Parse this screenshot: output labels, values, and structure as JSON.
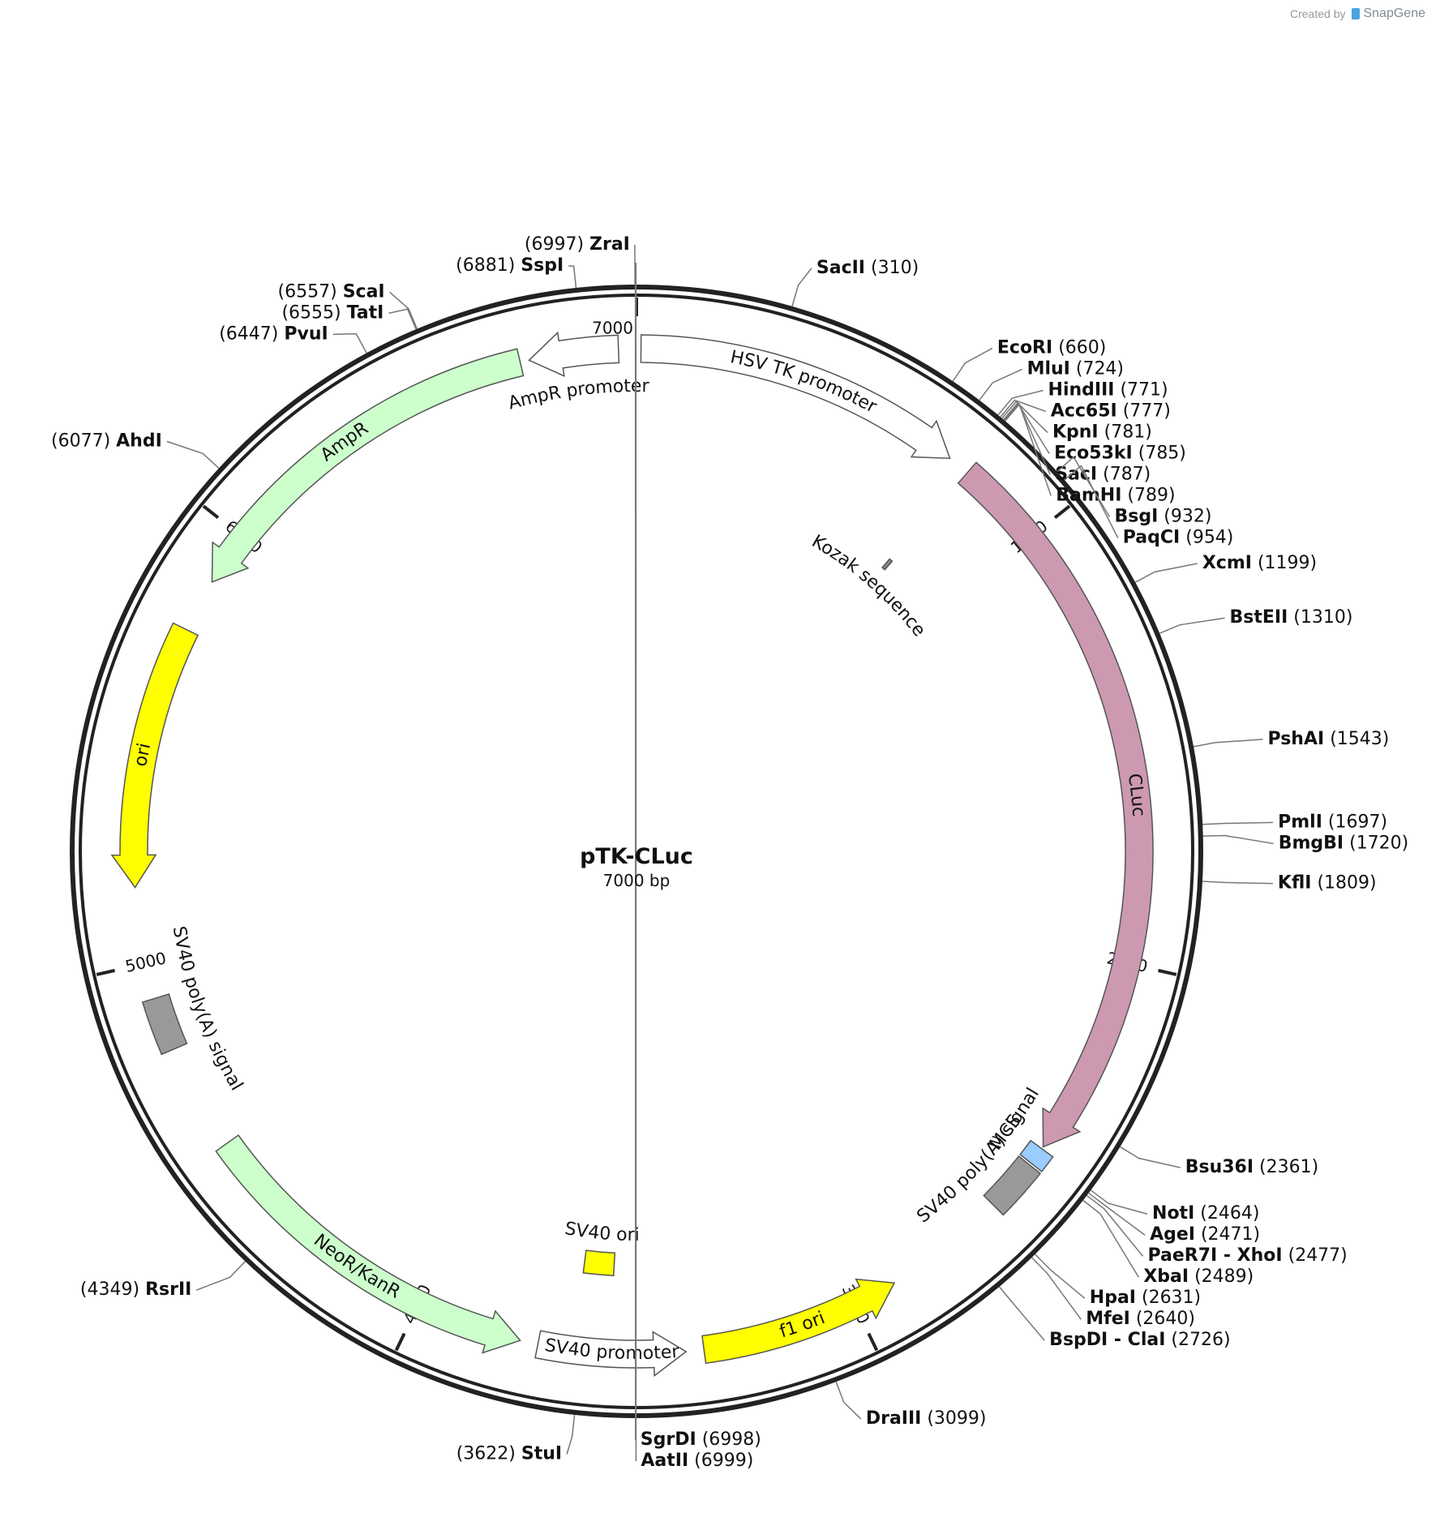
{
  "credit": {
    "prefix": "Created by",
    "brand": "SnapGene"
  },
  "plasmid": {
    "name": "pTK-CLuc",
    "length_label": "7000 bp",
    "total_bp": 7000
  },
  "ticks": [
    {
      "bp": 1000,
      "label": "1000"
    },
    {
      "bp": 2000,
      "label": "2000"
    },
    {
      "bp": 3000,
      "label": "3000"
    },
    {
      "bp": 4000,
      "label": "4000"
    },
    {
      "bp": 5000,
      "label": "5000"
    },
    {
      "bp": 6000,
      "label": "6000"
    },
    {
      "bp": 7000,
      "label": "7000"
    }
  ],
  "features": [
    {
      "name": "HSV TK promoter",
      "type": "arrow",
      "start": 10,
      "end": 750,
      "color": "#ffffff",
      "track": 0
    },
    {
      "name": "CLuc",
      "type": "arrow",
      "start": 800,
      "end": 2450,
      "color": "#cc99b1",
      "track": 0
    },
    {
      "name": "Kozak sequence",
      "type": "box",
      "start": 795,
      "end": 805,
      "color": "#888888",
      "track": 2
    },
    {
      "name": "MCS",
      "type": "box",
      "start": 2455,
      "end": 2495,
      "color": "#99ccff",
      "track": 0
    },
    {
      "name": "SV40 poly(A) signal",
      "type": "box",
      "start": 2500,
      "end": 2620,
      "color": "#999999",
      "track": 0
    },
    {
      "name": "f1 ori",
      "type": "arrow_rev",
      "start": 2900,
      "end": 3350,
      "color": "#ffff00",
      "track": 0
    },
    {
      "name": "SV40 promoter",
      "type": "arrow_rev",
      "start": 3390,
      "end": 3720,
      "color": "#ffffff",
      "track": 0
    },
    {
      "name": "SV40 ori",
      "type": "box",
      "start": 3560,
      "end": 3640,
      "color": "#ffff00",
      "track": 1
    },
    {
      "name": "NeoR/KanR",
      "type": "arrow_rev",
      "start": 3760,
      "end": 4560,
      "color": "#ccffcc",
      "track": 0
    },
    {
      "name": "SV40 poly(A) signal",
      "type": "box",
      "start": 4800,
      "end": 4920,
      "color": "#999999",
      "track": 0
    },
    {
      "name": "ori",
      "type": "arrow_rev",
      "start": 5170,
      "end": 5760,
      "color": "#ffff00",
      "track": 0
    },
    {
      "name": "AmpR",
      "type": "arrow_rev",
      "start": 5880,
      "end": 6740,
      "color": "#ccffcc",
      "track": 0
    },
    {
      "name": "AmpR promoter",
      "type": "arrow_rev",
      "start": 6760,
      "end": 6960,
      "color": "#ffffff",
      "track": 0
    }
  ],
  "sites": [
    {
      "name": "ZraI",
      "pos": "(6997)",
      "bp": 6997,
      "side": "L"
    },
    {
      "name": "SspI",
      "pos": "(6881)",
      "bp": 6881,
      "side": "L"
    },
    {
      "name": "SgrDI",
      "pos": "(6998)",
      "bp": 6998,
      "side": "R"
    },
    {
      "name": "AatII",
      "pos": "(6999)",
      "bp": 6999,
      "side": "R"
    },
    {
      "name": "SacII",
      "pos": "(310)",
      "bp": 310,
      "side": "R"
    },
    {
      "name": "EcoRI",
      "pos": "(660)",
      "bp": 660,
      "side": "R"
    },
    {
      "name": "MluI",
      "pos": "(724)",
      "bp": 724,
      "side": "R"
    },
    {
      "name": "HindIII",
      "pos": "(771)",
      "bp": 771,
      "side": "R"
    },
    {
      "name": "Acc65I",
      "pos": "(777)",
      "bp": 777,
      "side": "R"
    },
    {
      "name": "KpnI",
      "pos": "(781)",
      "bp": 781,
      "side": "R"
    },
    {
      "name": "Eco53kI",
      "pos": "(785)",
      "bp": 785,
      "side": "R"
    },
    {
      "name": "SacI",
      "pos": "(787)",
      "bp": 787,
      "side": "R"
    },
    {
      "name": "BamHI",
      "pos": "(789)",
      "bp": 789,
      "side": "R"
    },
    {
      "name": "BsgI",
      "pos": "(932)",
      "bp": 932,
      "side": "R"
    },
    {
      "name": "PaqCI",
      "pos": "(954)",
      "bp": 954,
      "side": "R"
    },
    {
      "name": "XcmI",
      "pos": "(1199)",
      "bp": 1199,
      "side": "R"
    },
    {
      "name": "BstEII",
      "pos": "(1310)",
      "bp": 1310,
      "side": "R"
    },
    {
      "name": "PshAI",
      "pos": "(1543)",
      "bp": 1543,
      "side": "R"
    },
    {
      "name": "PmlI",
      "pos": "(1697)",
      "bp": 1697,
      "side": "R"
    },
    {
      "name": "BmgBI",
      "pos": "(1720)",
      "bp": 1720,
      "side": "R"
    },
    {
      "name": "KflI",
      "pos": "(1809)",
      "bp": 1809,
      "side": "R"
    },
    {
      "name": "Bsu36I",
      "pos": "(2361)",
      "bp": 2361,
      "side": "R"
    },
    {
      "name": "NotI",
      "pos": "(2464)",
      "bp": 2464,
      "side": "R"
    },
    {
      "name": "AgeI",
      "pos": "(2471)",
      "bp": 2471,
      "side": "R"
    },
    {
      "name": "PaeR7I - XhoI",
      "pos": "(2477)",
      "bp": 2477,
      "side": "R"
    },
    {
      "name": "XbaI",
      "pos": "(2489)",
      "bp": 2489,
      "side": "R"
    },
    {
      "name": "HpaI",
      "pos": "(2631)",
      "bp": 2631,
      "side": "R"
    },
    {
      "name": "MfeI",
      "pos": "(2640)",
      "bp": 2640,
      "side": "R"
    },
    {
      "name": "BspDI - ClaI",
      "pos": "(2726)",
      "bp": 2726,
      "side": "R"
    },
    {
      "name": "DraIII",
      "pos": "(3099)",
      "bp": 3099,
      "side": "R"
    },
    {
      "name": "StuI",
      "pos": "(3622)",
      "bp": 3622,
      "side": "L"
    },
    {
      "name": "RsrII",
      "pos": "(4349)",
      "bp": 4349,
      "side": "L"
    },
    {
      "name": "AhdI",
      "pos": "(6077)",
      "bp": 6077,
      "side": "L"
    },
    {
      "name": "PvuI",
      "pos": "(6447)",
      "bp": 6447,
      "side": "L"
    },
    {
      "name": "TatI",
      "pos": "(6555)",
      "bp": 6555,
      "side": "L"
    },
    {
      "name": "ScaI",
      "pos": "(6557)",
      "bp": 6557,
      "side": "L"
    }
  ]
}
